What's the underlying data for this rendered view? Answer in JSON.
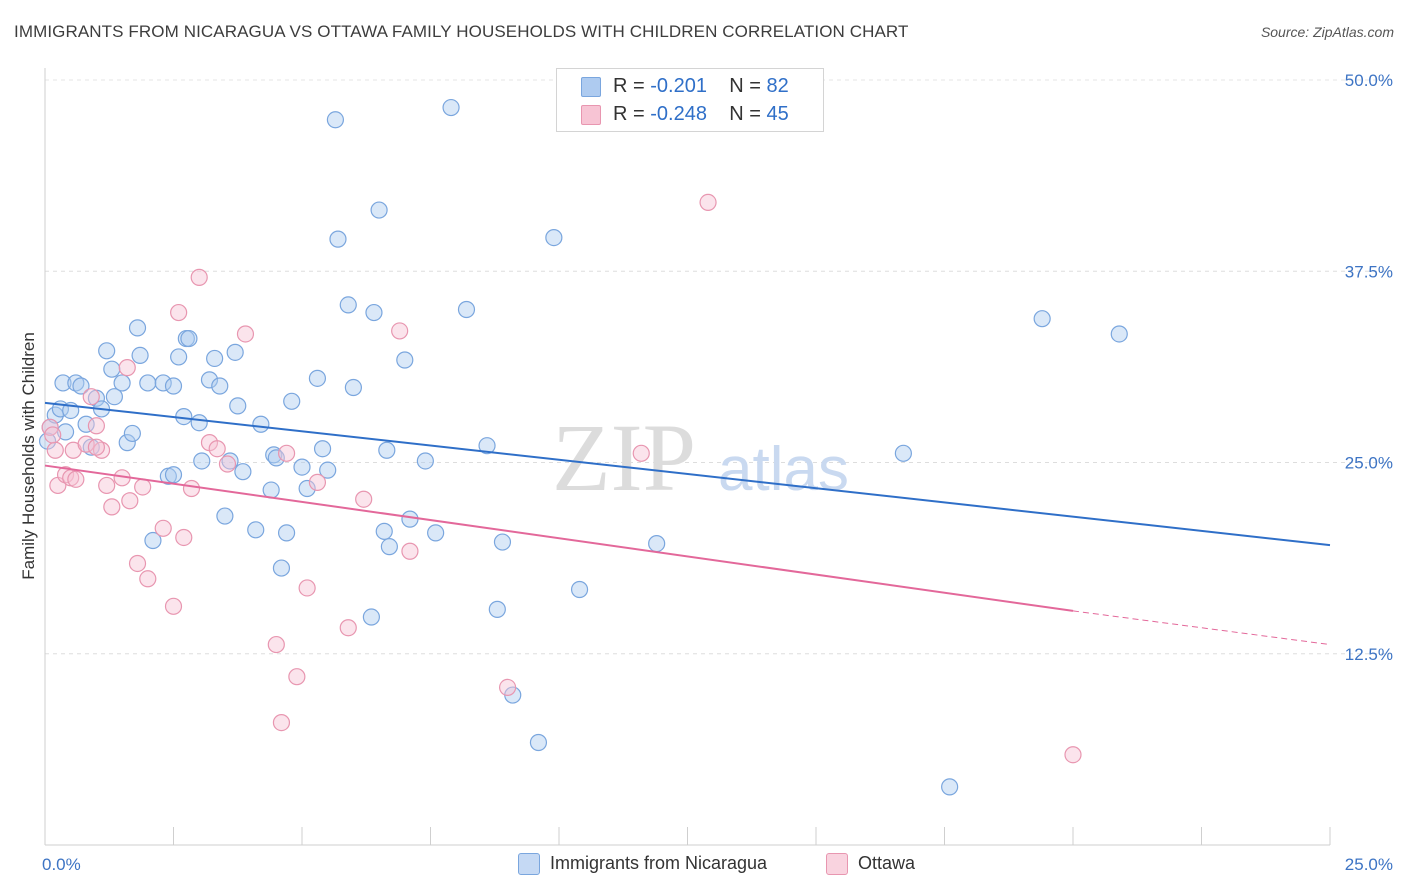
{
  "title": "IMMIGRANTS FROM NICARAGUA VS OTTAWA FAMILY HOUSEHOLDS WITH CHILDREN CORRELATION CHART",
  "source": "Source: ZipAtlas.com",
  "watermark": {
    "zip": "ZIP",
    "atlas": "atlas"
  },
  "legend": {
    "rows": [
      {
        "r_label": "R =",
        "r_value": "-0.201",
        "n_label": "N =",
        "n_value": "82",
        "color": "#aecbf0",
        "border": "#7aa6de"
      },
      {
        "r_label": "R =",
        "r_value": "-0.248",
        "n_label": "N =",
        "n_value": "45",
        "color": "#f7c4d4",
        "border": "#e896b0"
      }
    ]
  },
  "bottom_legend": [
    {
      "label": "Immigrants from Nicaragua",
      "color": "#c5d9f4",
      "border": "#7aa6de"
    },
    {
      "label": "Ottawa",
      "color": "#f9d3df",
      "border": "#e896b0"
    }
  ],
  "chart_data": {
    "type": "scatter",
    "title": "IMMIGRANTS FROM NICARAGUA VS OTTAWA FAMILY HOUSEHOLDS WITH CHILDREN CORRELATION CHART",
    "xlabel": "",
    "ylabel": "Family Households with Children",
    "xlim": [
      0,
      25
    ],
    "ylim": [
      0,
      50
    ],
    "x_tick_labels": [
      "0.0%",
      "25.0%"
    ],
    "y_ticks": [
      12.5,
      25.0,
      37.5,
      50.0
    ],
    "y_tick_labels": [
      "12.5%",
      "25.0%",
      "37.5%",
      "50.0%"
    ],
    "grid": "horizontal dashed",
    "legend_position": "top-center",
    "series": [
      {
        "name": "Immigrants from Nicaragua",
        "color": "#7aa6de",
        "fill": "rgba(174,203,240,0.45)",
        "trend_color": "#2f6fc8",
        "trend": {
          "x0": 0,
          "y0": 28.9,
          "x1": 25,
          "y1": 19.6
        },
        "points": [
          [
            0.1,
            27.3
          ],
          [
            0.2,
            28.1
          ],
          [
            0.3,
            28.5
          ],
          [
            0.35,
            30.2
          ],
          [
            0.4,
            27.0
          ],
          [
            0.5,
            28.4
          ],
          [
            0.6,
            30.2
          ],
          [
            0.7,
            30.0
          ],
          [
            0.8,
            27.5
          ],
          [
            0.9,
            26.0
          ],
          [
            1.0,
            29.2
          ],
          [
            1.1,
            28.5
          ],
          [
            1.2,
            32.3
          ],
          [
            1.3,
            31.1
          ],
          [
            1.35,
            29.3
          ],
          [
            1.5,
            30.2
          ],
          [
            1.6,
            26.3
          ],
          [
            1.7,
            26.9
          ],
          [
            1.8,
            33.8
          ],
          [
            1.85,
            32.0
          ],
          [
            2.0,
            30.2
          ],
          [
            2.1,
            19.9
          ],
          [
            2.3,
            30.2
          ],
          [
            2.4,
            24.1
          ],
          [
            2.5,
            24.2
          ],
          [
            2.5,
            30.0
          ],
          [
            2.6,
            31.9
          ],
          [
            2.7,
            28.0
          ],
          [
            2.75,
            33.1
          ],
          [
            2.8,
            33.1
          ],
          [
            3.0,
            27.6
          ],
          [
            3.05,
            25.1
          ],
          [
            3.2,
            30.4
          ],
          [
            3.3,
            31.8
          ],
          [
            3.4,
            30.0
          ],
          [
            3.5,
            21.5
          ],
          [
            3.6,
            25.1
          ],
          [
            3.7,
            32.2
          ],
          [
            3.75,
            28.7
          ],
          [
            3.85,
            24.4
          ],
          [
            4.1,
            20.6
          ],
          [
            4.2,
            27.5
          ],
          [
            4.4,
            23.2
          ],
          [
            4.45,
            25.5
          ],
          [
            4.5,
            25.3
          ],
          [
            4.6,
            18.1
          ],
          [
            4.7,
            20.4
          ],
          [
            4.8,
            29.0
          ],
          [
            5.0,
            24.7
          ],
          [
            5.1,
            23.3
          ],
          [
            5.3,
            30.5
          ],
          [
            5.4,
            25.9
          ],
          [
            5.5,
            24.5
          ],
          [
            5.7,
            39.6
          ],
          [
            5.65,
            47.4
          ],
          [
            5.9,
            35.3
          ],
          [
            6.0,
            29.9
          ],
          [
            6.35,
            14.9
          ],
          [
            6.4,
            34.8
          ],
          [
            6.5,
            41.5
          ],
          [
            6.6,
            20.5
          ],
          [
            6.65,
            25.8
          ],
          [
            6.7,
            19.5
          ],
          [
            7.0,
            31.7
          ],
          [
            7.1,
            21.3
          ],
          [
            7.4,
            25.1
          ],
          [
            7.6,
            20.4
          ],
          [
            7.9,
            48.2
          ],
          [
            8.2,
            35.0
          ],
          [
            8.6,
            26.1
          ],
          [
            8.8,
            15.4
          ],
          [
            8.9,
            19.8
          ],
          [
            9.1,
            9.8
          ],
          [
            9.6,
            6.7
          ],
          [
            9.9,
            39.7
          ],
          [
            10.4,
            16.7
          ],
          [
            11.9,
            19.7
          ],
          [
            16.7,
            25.6
          ],
          [
            17.6,
            3.8
          ],
          [
            19.4,
            34.4
          ],
          [
            20.9,
            33.4
          ],
          [
            0.05,
            26.4
          ]
        ]
      },
      {
        "name": "Ottawa",
        "color": "#e896b0",
        "fill": "rgba(247,196,212,0.45)",
        "trend_color": "#e3689a",
        "trend": {
          "x0": 0,
          "y0": 24.8,
          "x1": 20.0,
          "y1": 15.3
        },
        "trend_dashed_to": {
          "x": 25,
          "y": 13.1
        },
        "points": [
          [
            0.1,
            27.3
          ],
          [
            0.2,
            25.8
          ],
          [
            0.25,
            23.5
          ],
          [
            0.4,
            24.2
          ],
          [
            0.5,
            24.0
          ],
          [
            0.55,
            25.8
          ],
          [
            0.6,
            23.9
          ],
          [
            0.8,
            26.2
          ],
          [
            0.9,
            29.3
          ],
          [
            1.0,
            27.4
          ],
          [
            1.1,
            25.8
          ],
          [
            1.2,
            23.5
          ],
          [
            1.3,
            22.1
          ],
          [
            1.5,
            24.0
          ],
          [
            1.6,
            31.2
          ],
          [
            1.65,
            22.5
          ],
          [
            1.8,
            18.4
          ],
          [
            1.9,
            23.4
          ],
          [
            2.0,
            17.4
          ],
          [
            2.3,
            20.7
          ],
          [
            2.5,
            15.6
          ],
          [
            2.6,
            34.8
          ],
          [
            2.7,
            20.1
          ],
          [
            2.85,
            23.3
          ],
          [
            3.0,
            37.1
          ],
          [
            3.2,
            26.3
          ],
          [
            3.35,
            25.9
          ],
          [
            3.55,
            24.9
          ],
          [
            3.9,
            33.4
          ],
          [
            4.5,
            13.1
          ],
          [
            4.6,
            8.0
          ],
          [
            4.7,
            25.6
          ],
          [
            4.9,
            11.0
          ],
          [
            5.1,
            16.8
          ],
          [
            5.3,
            23.7
          ],
          [
            5.9,
            14.2
          ],
          [
            6.2,
            22.6
          ],
          [
            6.9,
            33.6
          ],
          [
            7.1,
            19.2
          ],
          [
            9.0,
            10.3
          ],
          [
            11.6,
            25.6
          ],
          [
            12.9,
            42.0
          ],
          [
            20.0,
            5.9
          ],
          [
            0.15,
            26.8
          ],
          [
            1.0,
            26.0
          ]
        ]
      }
    ]
  }
}
